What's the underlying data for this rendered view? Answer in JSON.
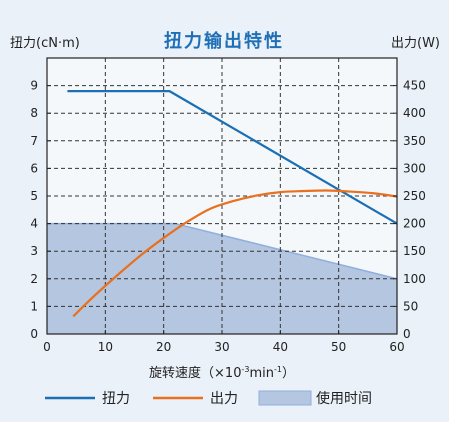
{
  "chart_data": {
    "type": "line",
    "title": "扭力输出特性",
    "xlabel_main": "旋转速度（×10",
    "xlabel_exp": "-3",
    "xlabel_unit": "min",
    "xlabel_exp2": "-1",
    "xlabel_close": "）",
    "ylabel_left": "扭力(cN·m)",
    "ylabel_right": "出力(W)",
    "xlim": [
      0,
      60
    ],
    "ylim_left": [
      0,
      10
    ],
    "ylim_right": [
      0,
      500
    ],
    "x_ticks": [
      0,
      10,
      20,
      30,
      40,
      50,
      60
    ],
    "y_left_ticks": [
      0,
      1,
      2,
      3,
      4,
      5,
      6,
      7,
      8,
      9
    ],
    "y_right_ticks": [
      0,
      50,
      100,
      150,
      200,
      250,
      300,
      350,
      400,
      450
    ],
    "grid": true,
    "series": [
      {
        "name": "扭力",
        "axis": "left",
        "color": "#1a6fb5",
        "x": [
          3.5,
          21,
          60
        ],
        "y": [
          8.8,
          8.8,
          4.0
        ]
      },
      {
        "name": "出力",
        "axis": "right",
        "color": "#e8701e",
        "x": [
          4.5,
          8,
          12,
          16,
          20,
          24,
          28,
          32,
          36,
          40,
          44,
          48,
          52,
          56,
          60
        ],
        "y": [
          32,
          68,
          106,
          142,
          174,
          203,
          227,
          241,
          251,
          257,
          259,
          260,
          258,
          255,
          249
        ]
      },
      {
        "name": "使用时间",
        "type": "area",
        "axis": "left",
        "color": "#b4c6e0",
        "stroke": "#8fb0df",
        "x": [
          0,
          22,
          60
        ],
        "y": [
          4.0,
          4.0,
          2.0
        ]
      }
    ],
    "legend": {
      "placement": "bottom",
      "items": [
        {
          "label": "扭力",
          "kind": "line",
          "color": "#1a6fb5"
        },
        {
          "label": "出力",
          "kind": "line",
          "color": "#e8701e"
        },
        {
          "label": "使用时间",
          "kind": "area",
          "color": "#b4c6e0"
        }
      ]
    }
  }
}
